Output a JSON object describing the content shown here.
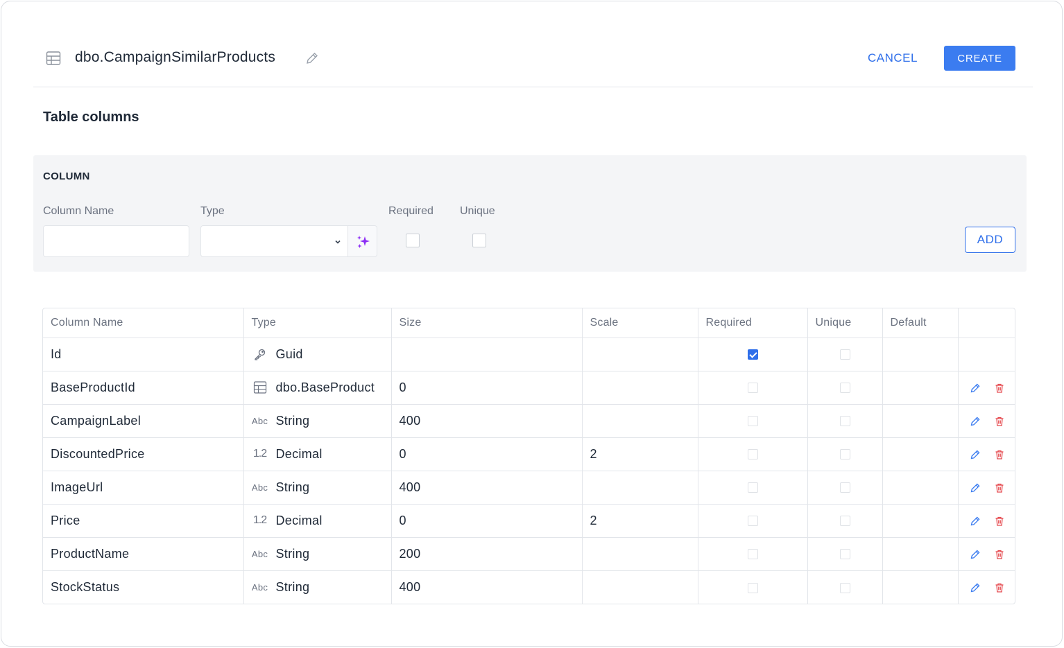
{
  "header": {
    "title": "dbo.CampaignSimilarProducts",
    "title_icon": "table-icon",
    "edit_icon": "pencil-icon",
    "cancel_label": "CANCEL",
    "create_label": "CREATE"
  },
  "section_title": "Table columns",
  "column_form": {
    "panel_title": "COLUMN",
    "name_label": "Column Name",
    "name_value": "",
    "type_label": "Type",
    "type_value": "",
    "magic_icon": "sparkles-icon",
    "required_label": "Required",
    "unique_label": "Unique",
    "add_label": "ADD"
  },
  "table": {
    "headers": [
      "Column Name",
      "Type",
      "Size",
      "Scale",
      "Required",
      "Unique",
      "Default",
      ""
    ],
    "rows": [
      {
        "name": "Id",
        "type_icon": "key-icon",
        "type": "Guid",
        "size": "",
        "scale": "",
        "required": true,
        "unique": false,
        "default": "",
        "editable": false
      },
      {
        "name": "BaseProductId",
        "type_icon": "table-icon",
        "type": "dbo.BaseProduct",
        "size": "0",
        "scale": "",
        "required": false,
        "unique": false,
        "default": "",
        "editable": true
      },
      {
        "name": "CampaignLabel",
        "type_icon": "string-icon",
        "type_glyph": "Abc",
        "type": "String",
        "size": "400",
        "scale": "",
        "required": false,
        "unique": false,
        "default": "",
        "editable": true
      },
      {
        "name": "DiscountedPrice",
        "type_icon": "decimal-icon",
        "type_glyph": "1.2",
        "type": "Decimal",
        "size": "0",
        "scale": "2",
        "required": false,
        "unique": false,
        "default": "",
        "editable": true
      },
      {
        "name": "ImageUrl",
        "type_icon": "string-icon",
        "type_glyph": "Abc",
        "type": "String",
        "size": "400",
        "scale": "",
        "required": false,
        "unique": false,
        "default": "",
        "editable": true
      },
      {
        "name": "Price",
        "type_icon": "decimal-icon",
        "type_glyph": "1.2",
        "type": "Decimal",
        "size": "0",
        "scale": "2",
        "required": false,
        "unique": false,
        "default": "",
        "editable": true
      },
      {
        "name": "ProductName",
        "type_icon": "string-icon",
        "type_glyph": "Abc",
        "type": "String",
        "size": "200",
        "scale": "",
        "required": false,
        "unique": false,
        "default": "",
        "editable": true
      },
      {
        "name": "StockStatus",
        "type_icon": "string-icon",
        "type_glyph": "Abc",
        "type": "String",
        "size": "400",
        "scale": "",
        "required": false,
        "unique": false,
        "default": "",
        "editable": true
      }
    ]
  },
  "colors": {
    "accent": "#3b7cf0",
    "delete": "#e5484d",
    "magic": "#8b2cf5"
  }
}
